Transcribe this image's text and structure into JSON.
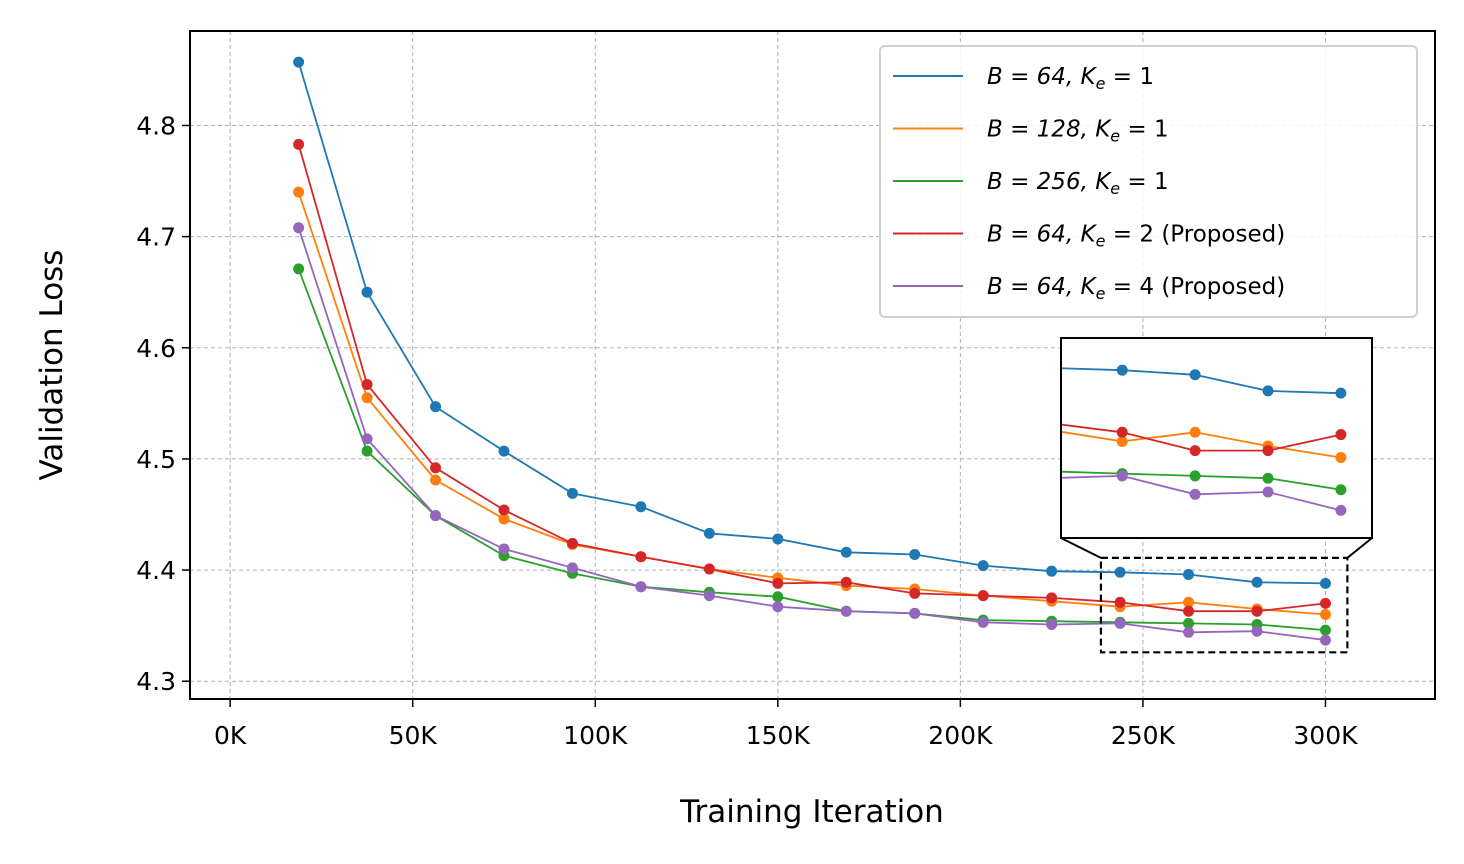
{
  "chart_data": {
    "type": "line",
    "title": "",
    "xlabel": "Training Iteration",
    "ylabel": "Validation Loss",
    "xlim": [
      -11000,
      330000
    ],
    "ylim": [
      4.284,
      4.885
    ],
    "grid": true,
    "legend_position": "top-right",
    "x_ticks": [
      {
        "value": 0,
        "label": "0K"
      },
      {
        "value": 50000,
        "label": "50K"
      },
      {
        "value": 100000,
        "label": "100K"
      },
      {
        "value": 150000,
        "label": "150K"
      },
      {
        "value": 200000,
        "label": "200K"
      },
      {
        "value": 250000,
        "label": "250K"
      },
      {
        "value": 300000,
        "label": "300K"
      }
    ],
    "y_ticks": [
      {
        "value": 4.3,
        "label": "4.3"
      },
      {
        "value": 4.4,
        "label": "4.4"
      },
      {
        "value": 4.5,
        "label": "4.5"
      },
      {
        "value": 4.6,
        "label": "4.6"
      },
      {
        "value": 4.7,
        "label": "4.7"
      },
      {
        "value": 4.8,
        "label": "4.8"
      }
    ],
    "x": [
      18750,
      37500,
      56250,
      75000,
      93750,
      112500,
      131250,
      150000,
      168750,
      187500,
      206250,
      225000,
      243750,
      262500,
      281250,
      300000
    ],
    "series": [
      {
        "name": "B=64, Ke=1",
        "color": "#1f77b4",
        "legend": {
          "prefix": "B = 64, K",
          "sub": "e",
          "suffix": " = 1"
        },
        "values": [
          4.857,
          4.65,
          4.547,
          4.507,
          4.469,
          4.457,
          4.433,
          4.428,
          4.416,
          4.414,
          4.404,
          4.399,
          4.398,
          4.396,
          4.389,
          4.388
        ]
      },
      {
        "name": "B=128, Ke=1",
        "color": "#ff7f0e",
        "legend": {
          "prefix": "B = 128, K",
          "sub": "e",
          "suffix": " = 1"
        },
        "values": [
          4.74,
          4.555,
          4.481,
          4.446,
          4.423,
          4.412,
          4.401,
          4.393,
          4.386,
          4.383,
          4.377,
          4.372,
          4.367,
          4.371,
          4.365,
          4.36
        ]
      },
      {
        "name": "B=256, Ke=1",
        "color": "#2ca02c",
        "legend": {
          "prefix": "B = 256, K",
          "sub": "e",
          "suffix": " = 1"
        },
        "values": [
          4.671,
          4.507,
          4.449,
          4.413,
          4.397,
          4.385,
          4.38,
          4.376,
          4.363,
          4.361,
          4.355,
          4.354,
          4.353,
          4.352,
          4.351,
          4.346
        ]
      },
      {
        "name": "B=64, Ke=2 (Proposed)",
        "color": "#d62728",
        "legend": {
          "prefix": "B = 64, K",
          "sub": "e",
          "suffix": " = 2 (Proposed)"
        },
        "values": [
          4.783,
          4.567,
          4.492,
          4.454,
          4.424,
          4.412,
          4.401,
          4.388,
          4.389,
          4.379,
          4.377,
          4.375,
          4.371,
          4.363,
          4.363,
          4.37
        ]
      },
      {
        "name": "B=64, Ke=4 (Proposed)",
        "color": "#9467bd",
        "legend": {
          "prefix": "B = 64, K",
          "sub": "e",
          "suffix": " = 4 (Proposed)"
        },
        "values": [
          4.708,
          4.518,
          4.449,
          4.419,
          4.402,
          4.385,
          4.377,
          4.367,
          4.363,
          4.361,
          4.353,
          4.351,
          4.352,
          4.344,
          4.345,
          4.337
        ]
      }
    ],
    "inset": {
      "description": "zoomed view",
      "xlim": [
        228000,
        308000
      ],
      "ylim": [
        4.325,
        4.412
      ],
      "source_xlim": [
        238500,
        306000
      ],
      "source_ylim": [
        4.326,
        4.411
      ]
    }
  }
}
